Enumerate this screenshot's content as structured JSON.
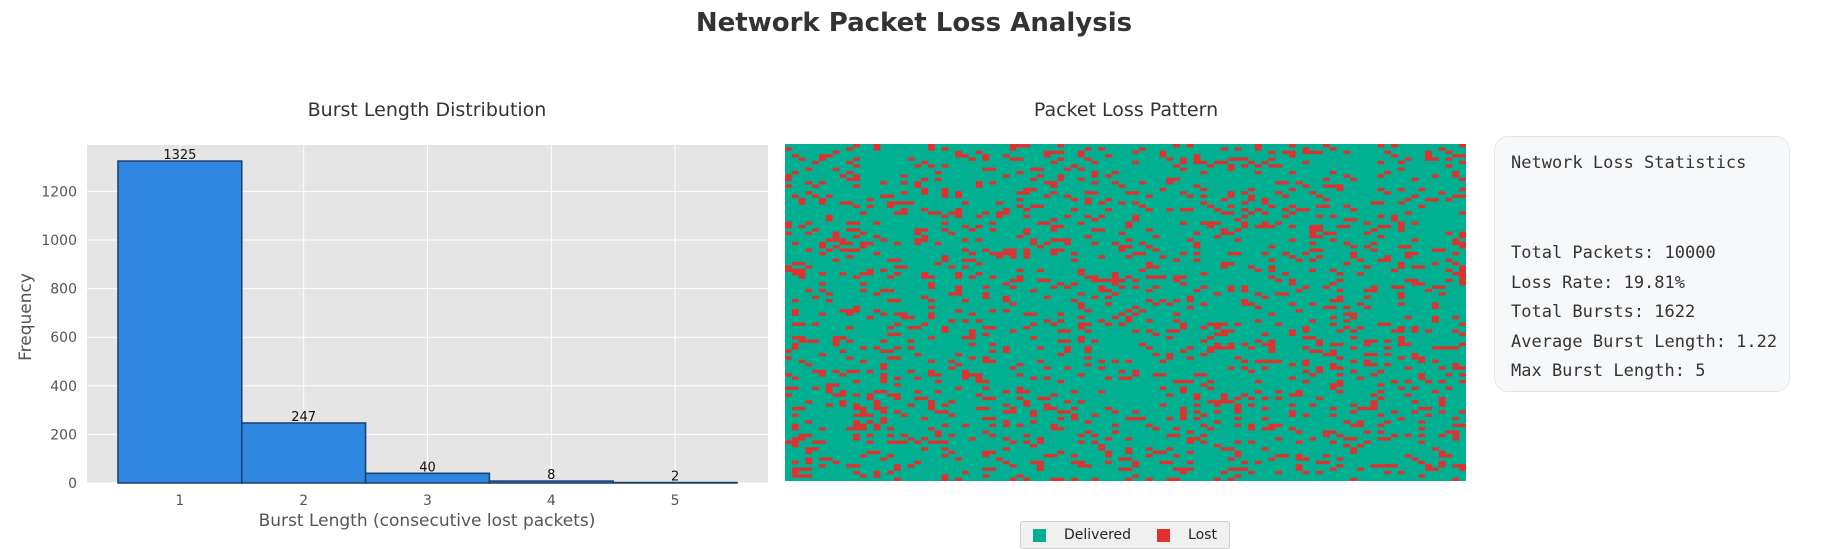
{
  "title": "Network Packet Loss Analysis",
  "colors": {
    "bar_fill": "#2e86de",
    "bar_edge": "#1b3f6b",
    "axes_bg": "#e5e5e5",
    "grid": "#ffffff",
    "delivered": "#00b090",
    "lost": "#e03131"
  },
  "chart_data": [
    {
      "type": "bar",
      "title": "Burst Length Distribution",
      "xlabel": "Burst Length (consecutive lost packets)",
      "ylabel": "Frequency",
      "categories": [
        "1",
        "2",
        "3",
        "4",
        "5"
      ],
      "values": [
        1325,
        247,
        40,
        8,
        2
      ],
      "data_labels": [
        "1325",
        "247",
        "40",
        "8",
        "2"
      ],
      "x_ticks": [
        "1",
        "2",
        "3",
        "4",
        "5"
      ],
      "y_ticks": [
        "0",
        "200",
        "400",
        "600",
        "800",
        "1000",
        "1200"
      ],
      "xlim": [
        0.25,
        5.75
      ],
      "ylim": [
        0,
        1391
      ],
      "grid": true
    },
    {
      "type": "heatmap",
      "title": "Packet Loss Pattern",
      "rows": 100,
      "cols": 100,
      "total_packets": 10000,
      "loss_rate": 0.1981,
      "categories": [
        "Delivered",
        "Lost"
      ],
      "legend": {
        "position": "bottom-center",
        "items": [
          {
            "label": "Delivered",
            "color": "#00b090"
          },
          {
            "label": "Lost",
            "color": "#e03131"
          }
        ]
      }
    }
  ],
  "stats": {
    "title": "Network Loss Statistics",
    "lines": [
      "Total Packets: 10000",
      "Loss Rate: 19.81%",
      "Total Bursts: 1622",
      "Average Burst Length: 1.22",
      "Max Burst Length: 5"
    ]
  }
}
